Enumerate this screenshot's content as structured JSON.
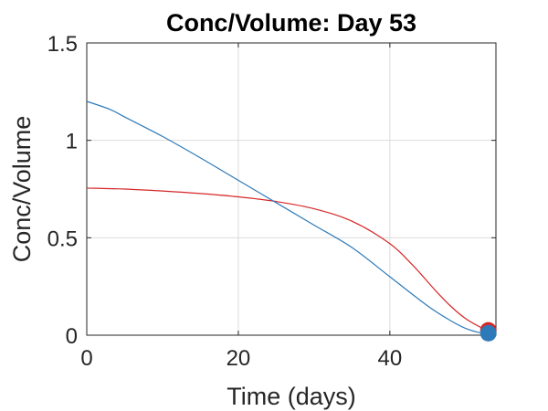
{
  "chart_data": {
    "type": "line",
    "title": "Conc/Volume: Day 53",
    "xlabel": "Time (days)",
    "ylabel": "Conc/Volume",
    "xlim": [
      0,
      54
    ],
    "ylim": [
      0,
      1.5
    ],
    "x_ticks": [
      0,
      20,
      40
    ],
    "x_tick_labels": [
      "0",
      "20",
      "40"
    ],
    "y_ticks": [
      0,
      0.5,
      1,
      1.5
    ],
    "y_tick_labels": [
      "0",
      "0.5",
      "1",
      "1.5"
    ],
    "grid": true,
    "legend": "none",
    "series": [
      {
        "color": "#d62728",
        "x": [
          0,
          5,
          10,
          15,
          20,
          25,
          30,
          35,
          40,
          43,
          46,
          48,
          50,
          52,
          53
        ],
        "y": [
          0.755,
          0.75,
          0.74,
          0.727,
          0.71,
          0.686,
          0.649,
          0.585,
          0.47,
          0.36,
          0.23,
          0.15,
          0.085,
          0.04,
          0.025
        ]
      },
      {
        "color": "#2e7ab8",
        "x": [
          0,
          3,
          5,
          10,
          15,
          20,
          25,
          30,
          35,
          40,
          45,
          48,
          50,
          52,
          53
        ],
        "y": [
          1.2,
          1.16,
          1.12,
          1.02,
          0.91,
          0.795,
          0.68,
          0.565,
          0.45,
          0.3,
          0.15,
          0.075,
          0.035,
          0.012,
          0.01
        ]
      }
    ],
    "markers": [
      {
        "x": 53,
        "y": 0.025,
        "color": "#d62728"
      },
      {
        "x": 53,
        "y": 0.01,
        "color": "#2e7ab8"
      }
    ]
  }
}
